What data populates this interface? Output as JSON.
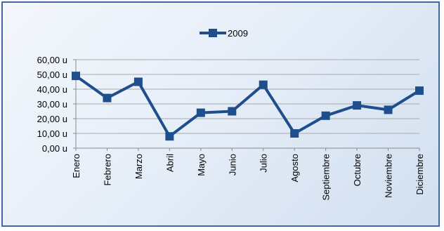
{
  "chart_data": {
    "type": "line",
    "categories": [
      "Enero",
      "Febrero",
      "Marzo",
      "Abril",
      "Mayo",
      "Junio",
      "Julio",
      "Agosto",
      "Septiembre",
      "Octubre",
      "Noviembre",
      "Diciembre"
    ],
    "series": [
      {
        "name": "2009",
        "values": [
          49,
          34,
          45,
          8,
          24,
          25,
          43,
          10,
          22,
          29,
          26,
          39
        ],
        "color": "#1f4e8c"
      }
    ],
    "y_ticks": [
      "0,00 u",
      "10,00 u",
      "20,00 u",
      "30,00 u",
      "40,00 u",
      "50,00 u",
      "60,00 u"
    ],
    "ylim": [
      0,
      60
    ],
    "grid": true,
    "legend_position": "top-center",
    "marker": "square"
  }
}
